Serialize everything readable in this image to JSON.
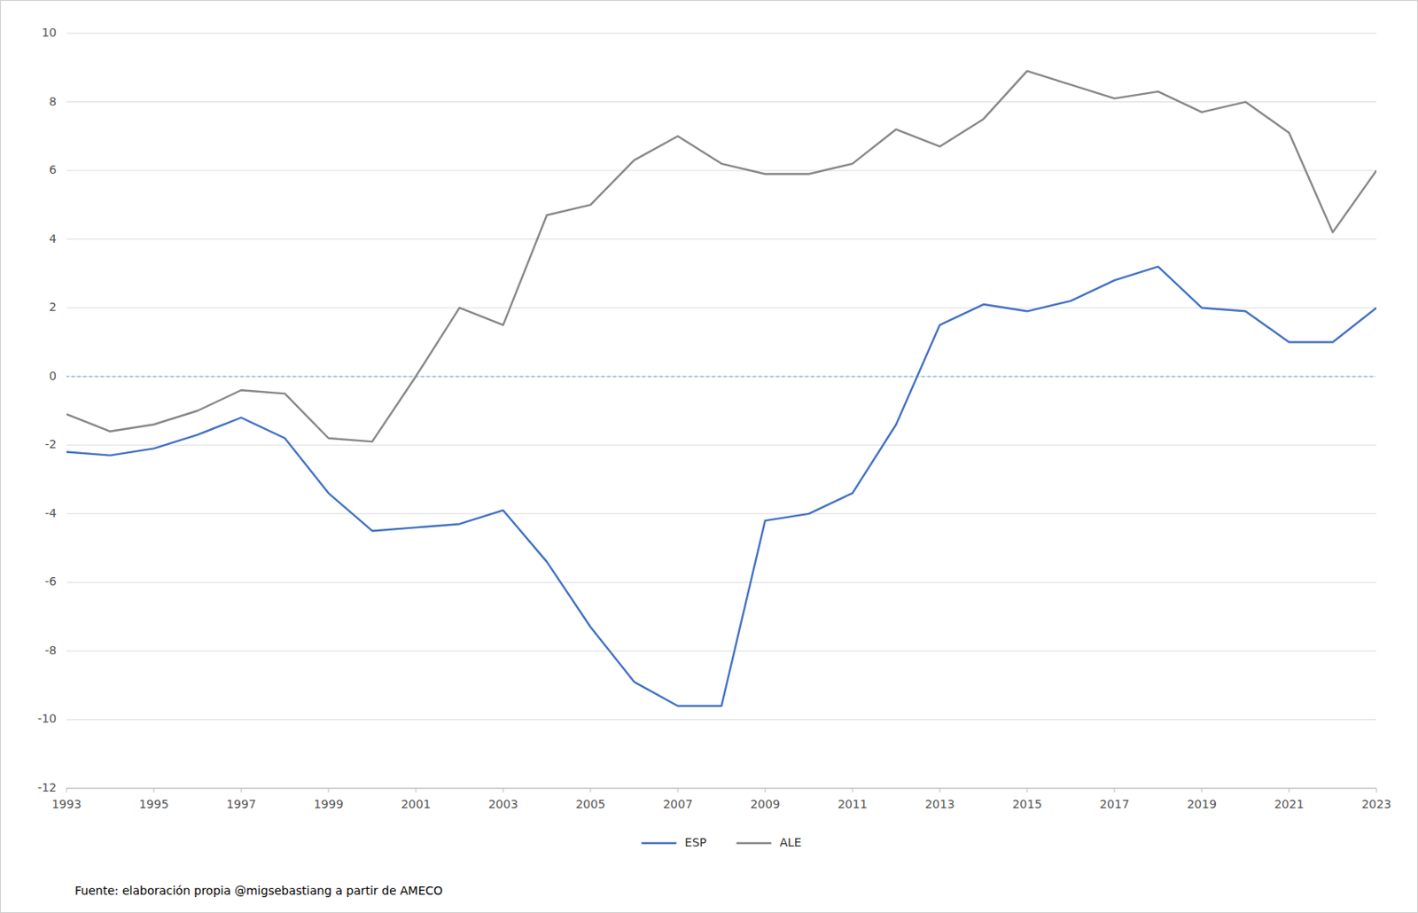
{
  "chart_data": {
    "type": "line",
    "x": [
      1993,
      1994,
      1995,
      1996,
      1997,
      1998,
      1999,
      2000,
      2001,
      2002,
      2003,
      2004,
      2005,
      2006,
      2007,
      2008,
      2009,
      2010,
      2011,
      2012,
      2013,
      2014,
      2015,
      2016,
      2017,
      2018,
      2019,
      2020,
      2021,
      2022,
      2023
    ],
    "series": [
      {
        "name": "ESP",
        "color": "#4472C4",
        "values": [
          -2.2,
          -2.3,
          -2.1,
          -1.7,
          -1.2,
          -1.8,
          -3.4,
          -4.5,
          -4.4,
          -4.3,
          -3.9,
          -5.4,
          -7.3,
          -8.9,
          -9.6,
          -9.6,
          -4.2,
          -4.0,
          -3.4,
          -1.4,
          1.5,
          2.1,
          1.9,
          2.2,
          2.8,
          3.2,
          2.0,
          1.9,
          1.0,
          1.0,
          2.0
        ]
      },
      {
        "name": "ALE",
        "color": "#888888",
        "values": [
          -1.1,
          -1.6,
          -1.4,
          -1.0,
          -0.4,
          -0.5,
          -1.8,
          -1.9,
          0.0,
          2.0,
          1.5,
          4.7,
          5.0,
          6.3,
          7.0,
          6.2,
          5.9,
          5.9,
          6.2,
          7.2,
          6.7,
          7.5,
          8.9,
          8.5,
          8.1,
          8.3,
          7.7,
          8.0,
          7.1,
          4.2,
          6.0
        ]
      }
    ],
    "ylim": [
      -12,
      10
    ],
    "yticks": [
      -12,
      -10,
      -8,
      -6,
      -4,
      -2,
      0,
      2,
      4,
      6,
      8,
      10
    ],
    "xlim": [
      1993,
      2023
    ],
    "xticks": [
      1993,
      1995,
      1997,
      1999,
      2001,
      2003,
      2005,
      2007,
      2009,
      2011,
      2013,
      2015,
      2017,
      2019,
      2021,
      2023
    ],
    "reference_line": {
      "value": 0,
      "color": "#92CDDC",
      "line_style": "dotted"
    },
    "grid": true,
    "legend": "bottom",
    "annotations": [
      "Fuente: elaboración propia @migsebastiang a partir de AMECO"
    ]
  }
}
